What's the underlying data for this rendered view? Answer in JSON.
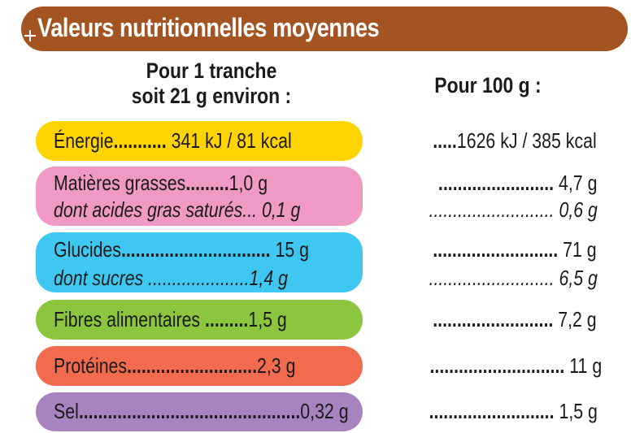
{
  "title": "Valeurs nutritionnelles moyennes",
  "header_left": [
    "Pour 1 tranche",
    "soit 21 g environ :"
  ],
  "header_right": "Pour 100 g :",
  "colors": {
    "banner": "#a45420",
    "energie": "#ffd400",
    "matieres_grasses": "#ef99c4",
    "glucides": "#3ec7f1",
    "fibres": "#8cc63f",
    "proteines": "#f26b4f",
    "sel": "#a783bf"
  },
  "rows": [
    {
      "label": "Énergie",
      "dots": "...........",
      "per_slice": "341 kJ / 81 kcal",
      "per_100_dots": ".....",
      "per_100": "1626 kJ / 385 kcal"
    },
    {
      "label": "Matières grasses",
      "dots": ".........",
      "per_slice": "1,0 g",
      "per_100_dots": "........................",
      "per_100": "4,7 g"
    },
    {
      "label": "dont acides gras saturés",
      "dots": "...",
      "per_slice": "0,1 g",
      "per_100_dots": "..........................",
      "per_100": "0,6 g"
    },
    {
      "label": "Glucides",
      "dots": "...............................",
      "per_slice": "15 g",
      "per_100_dots": "..........................",
      "per_100": "71 g"
    },
    {
      "label": "dont sucres",
      "dots": ".....................",
      "per_slice": "1,4 g",
      "per_100_dots": "..........................",
      "per_100": "6,5 g"
    },
    {
      "label": "Fibres alimentaires",
      "dots": ".........",
      "per_slice": "1,5 g",
      "per_100_dots": ".........................",
      "per_100": "7,2 g"
    },
    {
      "label": "Protéines",
      "dots": "...........................",
      "per_slice": "2,3 g",
      "per_100_dots": "............................",
      "per_100": "11 g"
    },
    {
      "label": "Sel",
      "dots": "..............................................",
      "per_slice": "0,32 g",
      "per_100_dots": "..........................",
      "per_100": "1,5 g"
    }
  ]
}
